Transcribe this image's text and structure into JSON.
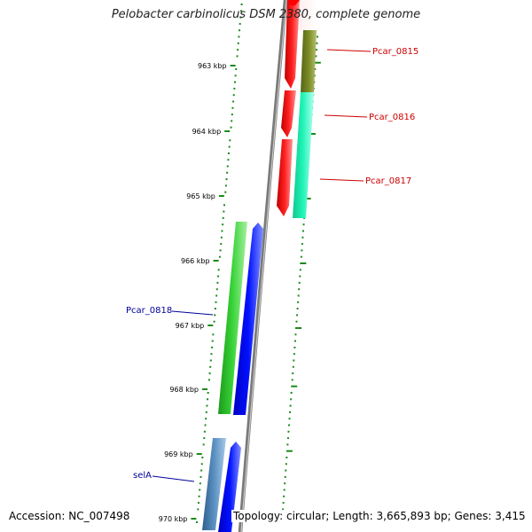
{
  "title": "Pelobacter carbinolicus DSM 2380, complete genome",
  "footer": {
    "accession": "Accession: NC_007498",
    "summary": "Topology: circular; Length: 3,665,893 bp; Genes: 3,415"
  },
  "ruler": {
    "ticks": [
      "963 kbp",
      "964 kbp",
      "965 kbp",
      "966 kbp",
      "967 kbp",
      "968 kbp",
      "969 kbp",
      "970 kbp"
    ]
  },
  "genes": {
    "forward": [
      "Pcar_0815",
      "Pcar_0816",
      "Pcar_0817"
    ],
    "reverse": [
      "Pcar_0818",
      "selA"
    ]
  },
  "colors": {
    "forward_label": "#cc0000",
    "reverse_label": "#000099",
    "tick_green": "#1a8a1a",
    "backbone_gray": "#8c8c8c",
    "red_cds": "#ff0000",
    "olive_gene": "#6b7a1e",
    "teal_gene": "#19f0b0",
    "green_gene": "#2ec82e",
    "blue_cds": "#0000ee",
    "steel_gene": "#4a7fb0"
  }
}
